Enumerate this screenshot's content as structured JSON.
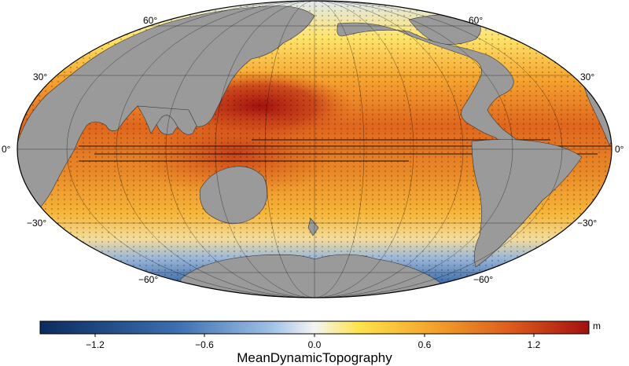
{
  "map": {
    "projection": "Mollweide, Pacific-centered",
    "land_color": "#9a9a9a",
    "lat_labels": [
      "60°",
      "30°",
      "0°",
      "−30°",
      "−60°"
    ]
  },
  "colorbar": {
    "ticks": [
      "−1.2",
      "−0.6",
      "0.0",
      "0.6",
      "1.2"
    ],
    "unit": "m",
    "title": "MeanDynamicTopography",
    "range": [
      -1.5,
      1.5
    ],
    "colors": [
      "#0b2b5e",
      "#3c6fb0",
      "#9fc0e6",
      "#f4f4f4",
      "#ffe44a",
      "#f3a12a",
      "#dc5a1c",
      "#a3100e"
    ]
  }
}
